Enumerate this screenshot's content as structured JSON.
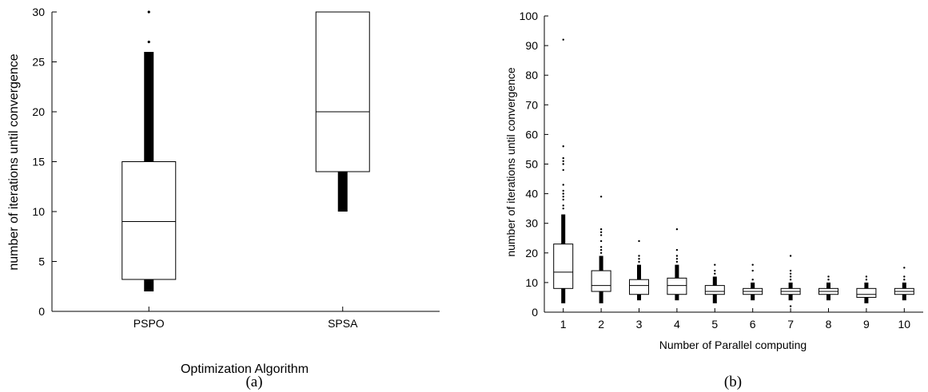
{
  "chart_data": [
    {
      "type": "box",
      "panel_label": "(a)",
      "xlabel": "Optimization Algorithm",
      "ylabel": "number of iterations until convergence",
      "ylim": [
        0,
        30
      ],
      "yticks": [
        0,
        5,
        10,
        15,
        20,
        25,
        30
      ],
      "grid": false,
      "categories": [
        "PSPO",
        "SPSA"
      ],
      "boxes": [
        {
          "q1": 3.2,
          "median": 9,
          "q3": 15,
          "whisker_low": 2,
          "whisker_high": 26,
          "outliers": [
            27,
            30
          ]
        },
        {
          "q1": 14,
          "median": 20,
          "q3": 30,
          "whisker_low": 10,
          "whisker_high": 30,
          "outliers": []
        }
      ]
    },
    {
      "type": "box",
      "panel_label": "(b)",
      "xlabel": "Number of Parallel computing",
      "ylabel": "number of iterations until convergence",
      "ylim": [
        0,
        100
      ],
      "yticks": [
        0,
        10,
        20,
        30,
        40,
        50,
        60,
        70,
        80,
        90,
        100
      ],
      "grid": false,
      "categories": [
        "1",
        "2",
        "3",
        "4",
        "5",
        "6",
        "7",
        "8",
        "9",
        "10"
      ],
      "boxes": [
        {
          "q1": 8,
          "median": 13.5,
          "q3": 23,
          "whisker_low": 3,
          "whisker_high": 33,
          "outliers": [
            35,
            36,
            38,
            39,
            40,
            41,
            43,
            48,
            50,
            51,
            52,
            56,
            92
          ]
        },
        {
          "q1": 7,
          "median": 9,
          "q3": 14,
          "whisker_low": 3,
          "whisker_high": 19,
          "outliers": [
            20,
            21,
            22,
            24,
            26,
            27,
            28,
            39
          ]
        },
        {
          "q1": 6,
          "median": 9,
          "q3": 11,
          "whisker_low": 4,
          "whisker_high": 16,
          "outliers": [
            17,
            18,
            19,
            24
          ]
        },
        {
          "q1": 6,
          "median": 9,
          "q3": 11.5,
          "whisker_low": 4,
          "whisker_high": 16,
          "outliers": [
            17,
            18,
            19,
            21,
            28
          ]
        },
        {
          "q1": 6,
          "median": 7,
          "q3": 9,
          "whisker_low": 3,
          "whisker_high": 12,
          "outliers": [
            13,
            14,
            16
          ]
        },
        {
          "q1": 6,
          "median": 7,
          "q3": 8,
          "whisker_low": 4,
          "whisker_high": 10,
          "outliers": [
            11,
            14,
            16
          ]
        },
        {
          "q1": 6,
          "median": 7,
          "q3": 8,
          "whisker_low": 4,
          "whisker_high": 10,
          "outliers": [
            11,
            12,
            13,
            14,
            19,
            2
          ]
        },
        {
          "q1": 6,
          "median": 7,
          "q3": 8,
          "whisker_low": 4,
          "whisker_high": 10,
          "outliers": [
            11,
            12
          ]
        },
        {
          "q1": 5,
          "median": 6,
          "q3": 8,
          "whisker_low": 3,
          "whisker_high": 10,
          "outliers": [
            11,
            12
          ]
        },
        {
          "q1": 6,
          "median": 7,
          "q3": 8,
          "whisker_low": 4,
          "whisker_high": 10,
          "outliers": [
            11,
            12,
            15
          ]
        }
      ]
    }
  ]
}
